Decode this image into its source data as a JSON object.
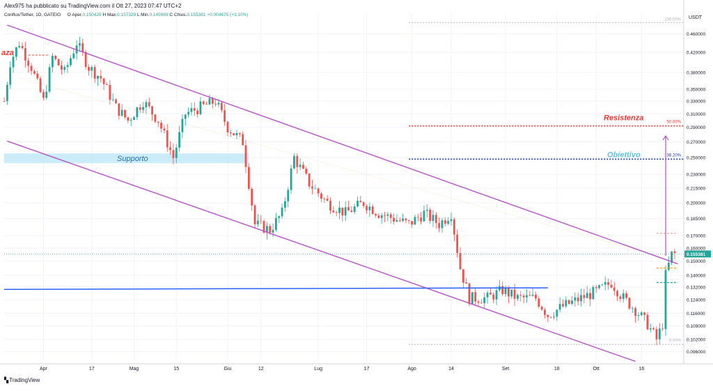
{
  "header": {
    "publisher_line": "Alex975 ha pubblicato su TradingView.com il Ott 27, 2023 07:47 UTC+2",
    "symbol_info": "Conflux/Tether, 1D, GATEIO",
    "ohlc": {
      "open_label": "O",
      "open_prefix": "Aper.",
      "open": "0.150429",
      "high_label": "H",
      "high_prefix": "Max.",
      "high": "0.157329",
      "low_label": "L",
      "low_prefix": "Min.",
      "low": "0.145969",
      "close_label": "C",
      "close_prefix": "Chius.",
      "close": "0.155381",
      "change": "+0.004675 (+3.10%)"
    }
  },
  "footer": {
    "brand": "TradingView"
  },
  "colors": {
    "up": "#26a69a",
    "down": "#ef5350",
    "channel": "#b553c6",
    "support_zone": "#b9e6f5",
    "blue_line": "#2962ff",
    "resistance": "#e53935",
    "target": "#1e3aa8"
  },
  "chart_data": {
    "type": "candlestick",
    "title": "",
    "y_axis": {
      "unit": "USDT",
      "scale": "log",
      "tick_labels": [
        "0.460000",
        "0.420000",
        "0.380000",
        "0.350000",
        "0.330000",
        "0.310000",
        "0.290000",
        "0.270000",
        "0.250000",
        "0.230000",
        "0.215000",
        "0.200000",
        "0.185000",
        "0.170000",
        "0.160000",
        "0.150000",
        "0.140000",
        "0.132000",
        "0.124000",
        "0.116000",
        "0.109000",
        "0.102000",
        "0.096000"
      ],
      "last_price_label": "0.155381",
      "range": [
        0.092,
        0.49
      ]
    },
    "x_axis": {
      "range": [
        "2023-03-19",
        "2023-10-30"
      ],
      "ticks": [
        {
          "date": "2023-04-01",
          "label": "Apr"
        },
        {
          "date": "2023-04-17",
          "label": "17"
        },
        {
          "date": "2023-05-01",
          "label": "Mag"
        },
        {
          "date": "2023-05-15",
          "label": "15"
        },
        {
          "date": "2023-06-01",
          "label": "Giu"
        },
        {
          "date": "2023-06-12",
          "label": "12"
        },
        {
          "date": "2023-07-01",
          "label": "Lug"
        },
        {
          "date": "2023-07-17",
          "label": "17"
        },
        {
          "date": "2023-08-01",
          "label": "Ago"
        },
        {
          "date": "2023-08-14",
          "label": "14"
        },
        {
          "date": "2023-09-01",
          "label": "Set"
        },
        {
          "date": "2023-09-18",
          "label": "18"
        },
        {
          "date": "2023-10-01",
          "label": "Ott"
        },
        {
          "date": "2023-10-16",
          "label": "16"
        }
      ]
    },
    "price_path": [
      [
        "2023-03-19",
        0.33
      ],
      [
        "2023-03-21",
        0.4
      ],
      [
        "2023-03-24",
        0.44
      ],
      [
        "2023-03-28",
        0.39
      ],
      [
        "2023-04-01",
        0.33
      ],
      [
        "2023-04-04",
        0.41
      ],
      [
        "2023-04-08",
        0.38
      ],
      [
        "2023-04-12",
        0.44
      ],
      [
        "2023-04-16",
        0.39
      ],
      [
        "2023-04-20",
        0.37
      ],
      [
        "2023-04-25",
        0.32
      ],
      [
        "2023-04-29",
        0.3
      ],
      [
        "2023-05-04",
        0.33
      ],
      [
        "2023-05-09",
        0.3
      ],
      [
        "2023-05-14",
        0.25
      ],
      [
        "2023-05-18",
        0.31
      ],
      [
        "2023-05-23",
        0.32
      ],
      [
        "2023-05-28",
        0.33
      ],
      [
        "2023-06-01",
        0.29
      ],
      [
        "2023-06-06",
        0.27
      ],
      [
        "2023-06-10",
        0.18
      ],
      [
        "2023-06-15",
        0.175
      ],
      [
        "2023-06-19",
        0.19
      ],
      [
        "2023-06-23",
        0.25
      ],
      [
        "2023-06-28",
        0.22
      ],
      [
        "2023-07-04",
        0.2
      ],
      [
        "2023-07-10",
        0.19
      ],
      [
        "2023-07-16",
        0.2
      ],
      [
        "2023-07-21",
        0.19
      ],
      [
        "2023-07-26",
        0.185
      ],
      [
        "2023-07-31",
        0.18
      ],
      [
        "2023-08-05",
        0.19
      ],
      [
        "2023-08-10",
        0.18
      ],
      [
        "2023-08-14",
        0.19
      ],
      [
        "2023-08-17",
        0.145
      ],
      [
        "2023-08-20",
        0.125
      ],
      [
        "2023-08-26",
        0.125
      ],
      [
        "2023-08-31",
        0.13
      ],
      [
        "2023-09-05",
        0.125
      ],
      [
        "2023-09-11",
        0.125
      ],
      [
        "2023-09-15",
        0.115
      ],
      [
        "2023-09-20",
        0.12
      ],
      [
        "2023-09-26",
        0.125
      ],
      [
        "2023-10-02",
        0.13
      ],
      [
        "2023-10-06",
        0.135
      ],
      [
        "2023-10-10",
        0.125
      ],
      [
        "2023-10-14",
        0.118
      ],
      [
        "2023-10-18",
        0.11
      ],
      [
        "2023-10-21",
        0.102
      ],
      [
        "2023-10-23",
        0.11
      ],
      [
        "2023-10-24",
        0.14
      ],
      [
        "2023-10-26",
        0.155
      ],
      [
        "2023-10-27",
        0.1554
      ]
    ],
    "annotations": {
      "left_cut_label": "aza",
      "support": {
        "label": "Supporto",
        "start": "2023-03-19",
        "end": "2023-06-08",
        "low": 0.243,
        "high": 0.255
      },
      "resistance": {
        "label": "Resistenza",
        "level_label": "50.00%",
        "price": 0.292,
        "start": "2023-07-31",
        "end": "2023-10-30"
      },
      "target": {
        "label": "Obiettivo",
        "level_label": "38.20%",
        "price": 0.248,
        "start": "2023-07-31",
        "end": "2023-10-30"
      },
      "fib_top": {
        "level_label": "100.00%",
        "price": 0.486,
        "start": "2023-07-31",
        "end": "2023-10-30"
      },
      "fib_bottom": {
        "level_label": "0.00%",
        "price": 0.0995,
        "start": "2023-07-31",
        "end": "2023-10-30"
      },
      "channel_upper": [
        [
          "2023-03-20",
          0.48
        ],
        [
          "2023-10-28",
          0.148
        ]
      ],
      "channel_lower": [
        [
          "2023-03-20",
          0.271
        ],
        [
          "2023-10-14",
          0.0915
        ]
      ],
      "horizontal_support_line": [
        [
          "2023-03-19",
          0.1305
        ],
        [
          "2023-09-15",
          0.1315
        ]
      ],
      "projection_arrow": {
        "date": "2023-10-24",
        "from": 0.154,
        "to": 0.278
      },
      "faint_trend": [
        [
          "2023-03-24",
          0.37
        ],
        [
          "2023-10-28",
          0.15
        ]
      ],
      "short_dashes": [
        {
          "date_start": "2023-03-27",
          "date_end": "2023-04-03",
          "price": 0.414,
          "color": "#ef5350"
        },
        {
          "date_start": "2023-10-21",
          "date_end": "2023-10-28",
          "price": 0.145,
          "color": "#ff9800"
        },
        {
          "date_start": "2023-10-21",
          "date_end": "2023-10-28",
          "price": 0.135,
          "color": "#26a69a"
        },
        {
          "date_start": "2023-10-21",
          "date_end": "2023-10-28",
          "price": 0.172,
          "color": "#ef9a9a"
        }
      ]
    }
  }
}
